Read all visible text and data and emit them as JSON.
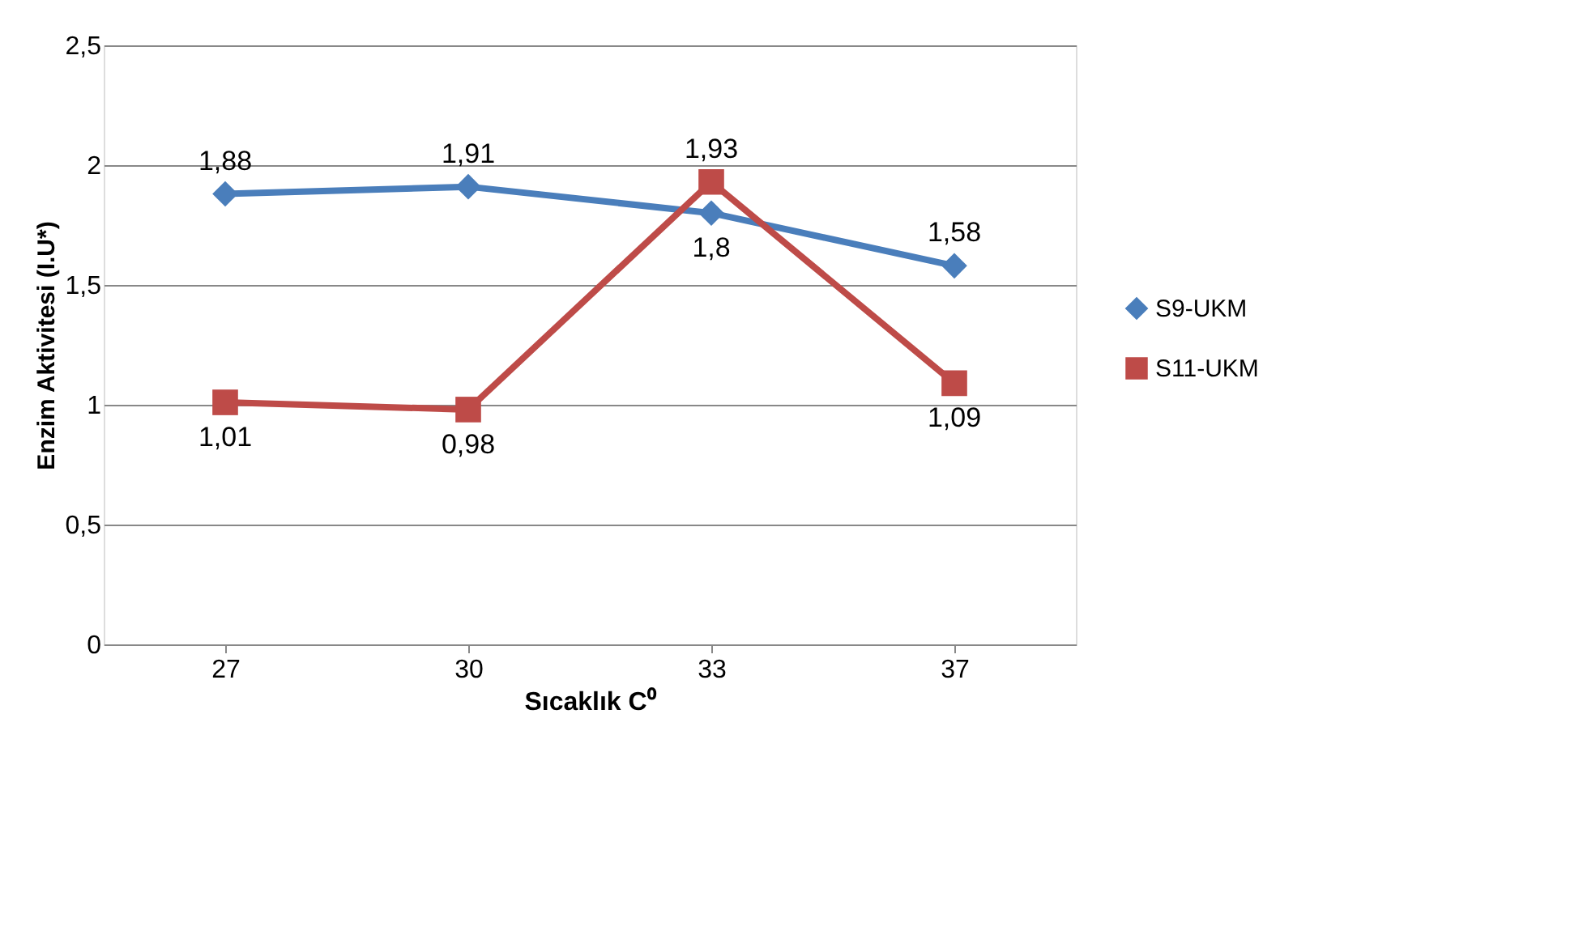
{
  "chart_data": {
    "type": "line",
    "xlabel": "Sıcaklık C⁰",
    "ylabel": "Enzim Aktivitesi (I.U*)",
    "categories": [
      "27",
      "30",
      "33",
      "37"
    ],
    "series": [
      {
        "name": "S9-UKM",
        "color": "#4a7ebb",
        "marker": "diamond",
        "values": [
          1.88,
          1.91,
          1.8,
          1.58
        ],
        "value_labels": [
          "1,88",
          "1,91",
          "1,8",
          "1,58"
        ]
      },
      {
        "name": "S11-UKM",
        "color": "#be4b48",
        "marker": "square",
        "values": [
          1.01,
          0.98,
          1.93,
          1.09
        ],
        "value_labels": [
          "1,01",
          "0,98",
          "1,93",
          "1,09"
        ]
      }
    ],
    "ylim": [
      0,
      2.5
    ],
    "yticks": [
      0,
      {
        "value": 0.5,
        "label": "0,5"
      },
      1,
      {
        "value": 1.5,
        "label": "1,5"
      },
      2,
      {
        "value": 2.5,
        "label": "2,5"
      }
    ],
    "grid": "y",
    "legend": "right",
    "line_style": "solid"
  }
}
